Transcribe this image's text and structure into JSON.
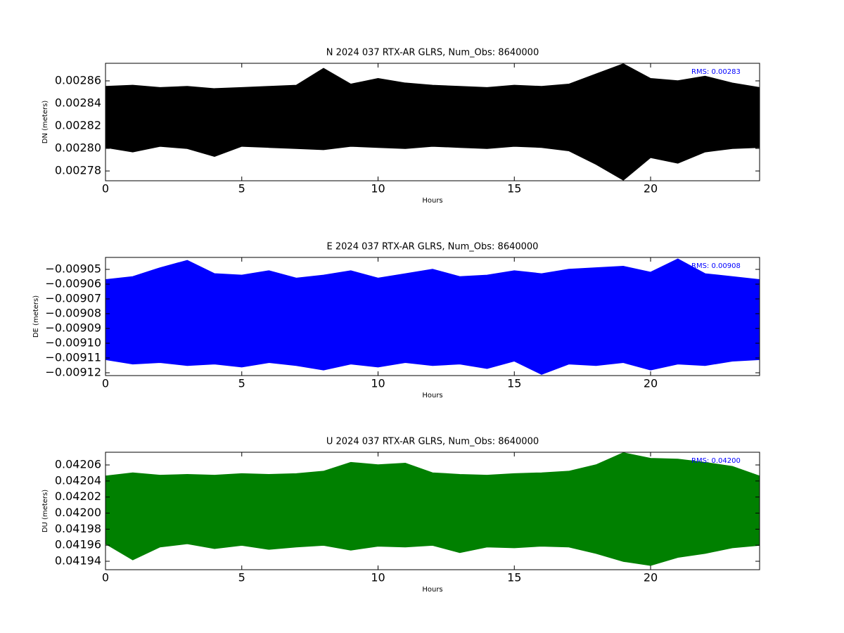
{
  "chart_data": [
    {
      "type": "area",
      "title": "N 2024 037 RTX-AR  GLRS, Num_Obs: 8640000",
      "xlabel": "Hours",
      "ylabel": "DN (meters)",
      "annotation": "RMS:  0.00283",
      "color": "#000000",
      "x": [
        0,
        1,
        2,
        3,
        4,
        5,
        6,
        7,
        8,
        9,
        10,
        11,
        12,
        13,
        14,
        15,
        16,
        17,
        18,
        19,
        20,
        21,
        22,
        23,
        24
      ],
      "high": [
        0.002855,
        0.002856,
        0.002854,
        0.002855,
        0.002853,
        0.002854,
        0.002855,
        0.002856,
        0.002871,
        0.002857,
        0.002862,
        0.002858,
        0.002856,
        0.002855,
        0.002854,
        0.002856,
        0.002855,
        0.002857,
        0.002866,
        0.002875,
        0.002862,
        0.00286,
        0.002864,
        0.002858,
        0.002854
      ],
      "low": [
        0.002801,
        0.002797,
        0.002802,
        0.0028,
        0.002793,
        0.002802,
        0.002801,
        0.0028,
        0.002799,
        0.002802,
        0.002801,
        0.0028,
        0.002802,
        0.002801,
        0.0028,
        0.002802,
        0.002801,
        0.002798,
        0.002786,
        0.002772,
        0.002792,
        0.002787,
        0.002797,
        0.0028,
        0.002801
      ],
      "xlim": [
        0,
        24
      ],
      "xticks": [
        0,
        5,
        10,
        15,
        20
      ],
      "ylim": [
        0.0027713,
        0.0028756
      ],
      "yticks": [
        0.00278,
        {
          "value": 0.0028,
          "label": "0.00280"
        },
        0.00282,
        0.00284,
        0.00286
      ]
    },
    {
      "type": "area",
      "title": "E 2024 037 RTX-AR  GLRS, Num_Obs: 8640000",
      "xlabel": "Hours",
      "ylabel": "DE (meters)",
      "annotation": "RMS:  0.00908",
      "color": "#0000ff",
      "x": [
        0,
        1,
        2,
        3,
        4,
        5,
        6,
        7,
        8,
        9,
        10,
        11,
        12,
        13,
        14,
        15,
        16,
        17,
        18,
        19,
        20,
        21,
        22,
        23,
        24
      ],
      "high": [
        -0.009057,
        -0.009055,
        -0.009049,
        -0.009044,
        -0.009053,
        -0.009054,
        -0.009051,
        -0.009056,
        -0.009054,
        -0.009051,
        -0.009056,
        -0.009053,
        -0.00905,
        -0.009055,
        -0.009054,
        -0.009051,
        -0.009053,
        -0.00905,
        -0.009049,
        -0.009048,
        -0.009052,
        -0.009043,
        -0.009053,
        -0.009055,
        -0.009057
      ],
      "low": [
        -0.009111,
        -0.009114,
        -0.009113,
        -0.009115,
        -0.009114,
        -0.009116,
        -0.009113,
        -0.009115,
        -0.009118,
        -0.009114,
        -0.009116,
        -0.009113,
        -0.009115,
        -0.009114,
        -0.009117,
        -0.009112,
        -0.009121,
        -0.009114,
        -0.009115,
        -0.009113,
        -0.009118,
        -0.009114,
        -0.009115,
        -0.009112,
        -0.009111
      ],
      "xlim": [
        0,
        24
      ],
      "xticks": [
        0,
        5,
        10,
        15,
        20
      ],
      "ylim": [
        -0.0091219,
        -0.0090419
      ],
      "yticks": [
        {
          "value": -0.00912,
          "label": "−0.00912"
        },
        {
          "value": -0.00911,
          "label": "−0.00911"
        },
        {
          "value": -0.0091,
          "label": "−0.00910"
        },
        {
          "value": -0.00909,
          "label": "−0.00909"
        },
        {
          "value": -0.00908,
          "label": "−0.00908"
        },
        {
          "value": -0.00907,
          "label": "−0.00907"
        },
        {
          "value": -0.00906,
          "label": "−0.00906"
        },
        {
          "value": -0.00905,
          "label": "−0.00905"
        }
      ]
    },
    {
      "type": "area",
      "title": "U 2024 037 RTX-AR  GLRS, Num_Obs: 8640000",
      "xlabel": "Hours",
      "ylabel": "DU (meters)",
      "annotation": "RMS:  0.04200",
      "color": "#008000",
      "x": [
        0,
        1,
        2,
        3,
        4,
        5,
        6,
        7,
        8,
        9,
        10,
        11,
        12,
        13,
        14,
        15,
        16,
        17,
        18,
        19,
        20,
        21,
        22,
        23,
        24
      ],
      "high": [
        0.042046,
        0.04205,
        0.042047,
        0.042048,
        0.042047,
        0.042049,
        0.042048,
        0.042049,
        0.042052,
        0.042063,
        0.04206,
        0.042062,
        0.04205,
        0.042048,
        0.042047,
        0.042049,
        0.04205,
        0.042052,
        0.04206,
        0.042075,
        0.042068,
        0.042067,
        0.042063,
        0.042058,
        0.042046
      ],
      "low": [
        0.041962,
        0.041942,
        0.041958,
        0.041962,
        0.041956,
        0.04196,
        0.041955,
        0.041958,
        0.04196,
        0.041954,
        0.041959,
        0.041958,
        0.04196,
        0.041951,
        0.041958,
        0.041957,
        0.041959,
        0.041958,
        0.04195,
        0.04194,
        0.041935,
        0.041945,
        0.04195,
        0.041957,
        0.04196
      ],
      "xlim": [
        0,
        24
      ],
      "xticks": [
        0,
        5,
        10,
        15,
        20
      ],
      "ylim": [
        0.0419295,
        0.0420758
      ],
      "yticks": [
        0.04194,
        0.04196,
        0.04198,
        {
          "value": 0.042,
          "label": "0.04200"
        },
        0.04202,
        0.04204,
        0.04206
      ]
    }
  ]
}
